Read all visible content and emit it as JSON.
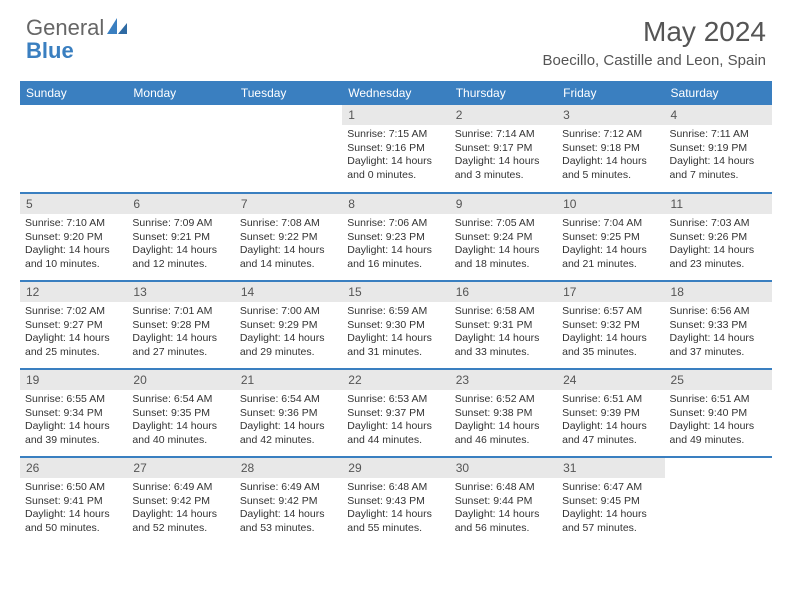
{
  "logo": {
    "line1": "General",
    "line2": "Blue"
  },
  "title": "May 2024",
  "location": "Boecillo, Castille and Leon, Spain",
  "columns": [
    "Sunday",
    "Monday",
    "Tuesday",
    "Wednesday",
    "Thursday",
    "Friday",
    "Saturday"
  ],
  "header_bg": "#3a7fc0",
  "header_fg": "#ffffff",
  "daynum_bg": "#e8e8e8",
  "row_border": "#3a7fc0",
  "text_color": "#333333",
  "font_size_body": 10.5,
  "weeks": [
    [
      null,
      null,
      null,
      {
        "n": "1",
        "sr": "7:15 AM",
        "ss": "9:16 PM",
        "dl": "14 hours and 0 minutes."
      },
      {
        "n": "2",
        "sr": "7:14 AM",
        "ss": "9:17 PM",
        "dl": "14 hours and 3 minutes."
      },
      {
        "n": "3",
        "sr": "7:12 AM",
        "ss": "9:18 PM",
        "dl": "14 hours and 5 minutes."
      },
      {
        "n": "4",
        "sr": "7:11 AM",
        "ss": "9:19 PM",
        "dl": "14 hours and 7 minutes."
      }
    ],
    [
      {
        "n": "5",
        "sr": "7:10 AM",
        "ss": "9:20 PM",
        "dl": "14 hours and 10 minutes."
      },
      {
        "n": "6",
        "sr": "7:09 AM",
        "ss": "9:21 PM",
        "dl": "14 hours and 12 minutes."
      },
      {
        "n": "7",
        "sr": "7:08 AM",
        "ss": "9:22 PM",
        "dl": "14 hours and 14 minutes."
      },
      {
        "n": "8",
        "sr": "7:06 AM",
        "ss": "9:23 PM",
        "dl": "14 hours and 16 minutes."
      },
      {
        "n": "9",
        "sr": "7:05 AM",
        "ss": "9:24 PM",
        "dl": "14 hours and 18 minutes."
      },
      {
        "n": "10",
        "sr": "7:04 AM",
        "ss": "9:25 PM",
        "dl": "14 hours and 21 minutes."
      },
      {
        "n": "11",
        "sr": "7:03 AM",
        "ss": "9:26 PM",
        "dl": "14 hours and 23 minutes."
      }
    ],
    [
      {
        "n": "12",
        "sr": "7:02 AM",
        "ss": "9:27 PM",
        "dl": "14 hours and 25 minutes."
      },
      {
        "n": "13",
        "sr": "7:01 AM",
        "ss": "9:28 PM",
        "dl": "14 hours and 27 minutes."
      },
      {
        "n": "14",
        "sr": "7:00 AM",
        "ss": "9:29 PM",
        "dl": "14 hours and 29 minutes."
      },
      {
        "n": "15",
        "sr": "6:59 AM",
        "ss": "9:30 PM",
        "dl": "14 hours and 31 minutes."
      },
      {
        "n": "16",
        "sr": "6:58 AM",
        "ss": "9:31 PM",
        "dl": "14 hours and 33 minutes."
      },
      {
        "n": "17",
        "sr": "6:57 AM",
        "ss": "9:32 PM",
        "dl": "14 hours and 35 minutes."
      },
      {
        "n": "18",
        "sr": "6:56 AM",
        "ss": "9:33 PM",
        "dl": "14 hours and 37 minutes."
      }
    ],
    [
      {
        "n": "19",
        "sr": "6:55 AM",
        "ss": "9:34 PM",
        "dl": "14 hours and 39 minutes."
      },
      {
        "n": "20",
        "sr": "6:54 AM",
        "ss": "9:35 PM",
        "dl": "14 hours and 40 minutes."
      },
      {
        "n": "21",
        "sr": "6:54 AM",
        "ss": "9:36 PM",
        "dl": "14 hours and 42 minutes."
      },
      {
        "n": "22",
        "sr": "6:53 AM",
        "ss": "9:37 PM",
        "dl": "14 hours and 44 minutes."
      },
      {
        "n": "23",
        "sr": "6:52 AM",
        "ss": "9:38 PM",
        "dl": "14 hours and 46 minutes."
      },
      {
        "n": "24",
        "sr": "6:51 AM",
        "ss": "9:39 PM",
        "dl": "14 hours and 47 minutes."
      },
      {
        "n": "25",
        "sr": "6:51 AM",
        "ss": "9:40 PM",
        "dl": "14 hours and 49 minutes."
      }
    ],
    [
      {
        "n": "26",
        "sr": "6:50 AM",
        "ss": "9:41 PM",
        "dl": "14 hours and 50 minutes."
      },
      {
        "n": "27",
        "sr": "6:49 AM",
        "ss": "9:42 PM",
        "dl": "14 hours and 52 minutes."
      },
      {
        "n": "28",
        "sr": "6:49 AM",
        "ss": "9:42 PM",
        "dl": "14 hours and 53 minutes."
      },
      {
        "n": "29",
        "sr": "6:48 AM",
        "ss": "9:43 PM",
        "dl": "14 hours and 55 minutes."
      },
      {
        "n": "30",
        "sr": "6:48 AM",
        "ss": "9:44 PM",
        "dl": "14 hours and 56 minutes."
      },
      {
        "n": "31",
        "sr": "6:47 AM",
        "ss": "9:45 PM",
        "dl": "14 hours and 57 minutes."
      },
      null
    ]
  ],
  "labels": {
    "sunrise": "Sunrise: ",
    "sunset": "Sunset: ",
    "daylight": "Daylight: "
  }
}
